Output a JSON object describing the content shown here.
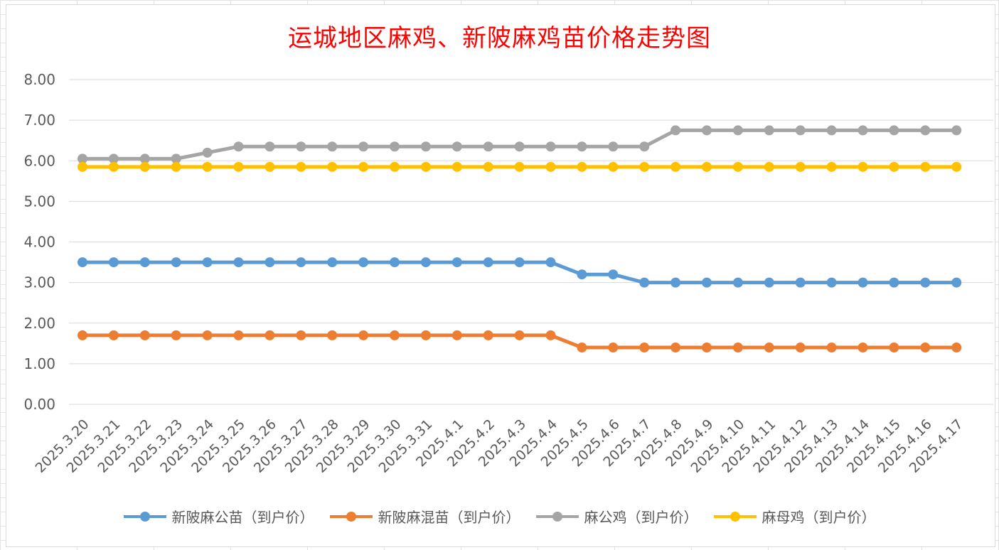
{
  "chart_data": {
    "type": "line",
    "title": "运城地区麻鸡、新陂麻鸡苗价格走势图",
    "xlabel": "",
    "ylabel": "",
    "ylim": [
      0,
      8
    ],
    "yticks": [
      "0.00",
      "1.00",
      "2.00",
      "3.00",
      "4.00",
      "5.00",
      "6.00",
      "7.00",
      "8.00"
    ],
    "grid": true,
    "legend_position": "bottom",
    "categories": [
      "2025.3.20",
      "2025.3.21",
      "2025.3.22",
      "2025.3.23",
      "2025.3.24",
      "2025.3.25",
      "2025.3.26",
      "2025.3.27",
      "2025.3.28",
      "2025.3.29",
      "2025.3.30",
      "2025.3.31",
      "2025.4.1",
      "2025.4.2",
      "2025.4.3",
      "2025.4.4",
      "2025.4.5",
      "2025.4.6",
      "2025.4.7",
      "2025.4.8",
      "2025.4.9",
      "2025.4.10",
      "2025.4.11",
      "2025.4.12",
      "2025.4.13",
      "2025.4.14",
      "2025.4.15",
      "2025.4.16",
      "2025.4.17"
    ],
    "series": [
      {
        "name": "新陂麻公苗（到户价）",
        "color": "#5b9bd5",
        "values": [
          3.5,
          3.5,
          3.5,
          3.5,
          3.5,
          3.5,
          3.5,
          3.5,
          3.5,
          3.5,
          3.5,
          3.5,
          3.5,
          3.5,
          3.5,
          3.5,
          3.2,
          3.2,
          3.0,
          3.0,
          3.0,
          3.0,
          3.0,
          3.0,
          3.0,
          3.0,
          3.0,
          3.0,
          3.0
        ]
      },
      {
        "name": "新陂麻混苗（到户价）",
        "color": "#ed7d31",
        "values": [
          1.7,
          1.7,
          1.7,
          1.7,
          1.7,
          1.7,
          1.7,
          1.7,
          1.7,
          1.7,
          1.7,
          1.7,
          1.7,
          1.7,
          1.7,
          1.7,
          1.4,
          1.4,
          1.4,
          1.4,
          1.4,
          1.4,
          1.4,
          1.4,
          1.4,
          1.4,
          1.4,
          1.4,
          1.4
        ]
      },
      {
        "name": "麻公鸡（到户价）",
        "color": "#a5a5a5",
        "values": [
          6.05,
          6.05,
          6.05,
          6.05,
          6.2,
          6.35,
          6.35,
          6.35,
          6.35,
          6.35,
          6.35,
          6.35,
          6.35,
          6.35,
          6.35,
          6.35,
          6.35,
          6.35,
          6.35,
          6.75,
          6.75,
          6.75,
          6.75,
          6.75,
          6.75,
          6.75,
          6.75,
          6.75,
          6.75
        ]
      },
      {
        "name": "麻母鸡（到户价）",
        "color": "#ffc000",
        "values": [
          5.85,
          5.85,
          5.85,
          5.85,
          5.85,
          5.85,
          5.85,
          5.85,
          5.85,
          5.85,
          5.85,
          5.85,
          5.85,
          5.85,
          5.85,
          5.85,
          5.85,
          5.85,
          5.85,
          5.85,
          5.85,
          5.85,
          5.85,
          5.85,
          5.85,
          5.85,
          5.85,
          5.85,
          5.85
        ]
      }
    ]
  },
  "colors": {
    "title": "#ff0000",
    "gridline": "#d9d9d9",
    "axis_text": "#595959"
  }
}
